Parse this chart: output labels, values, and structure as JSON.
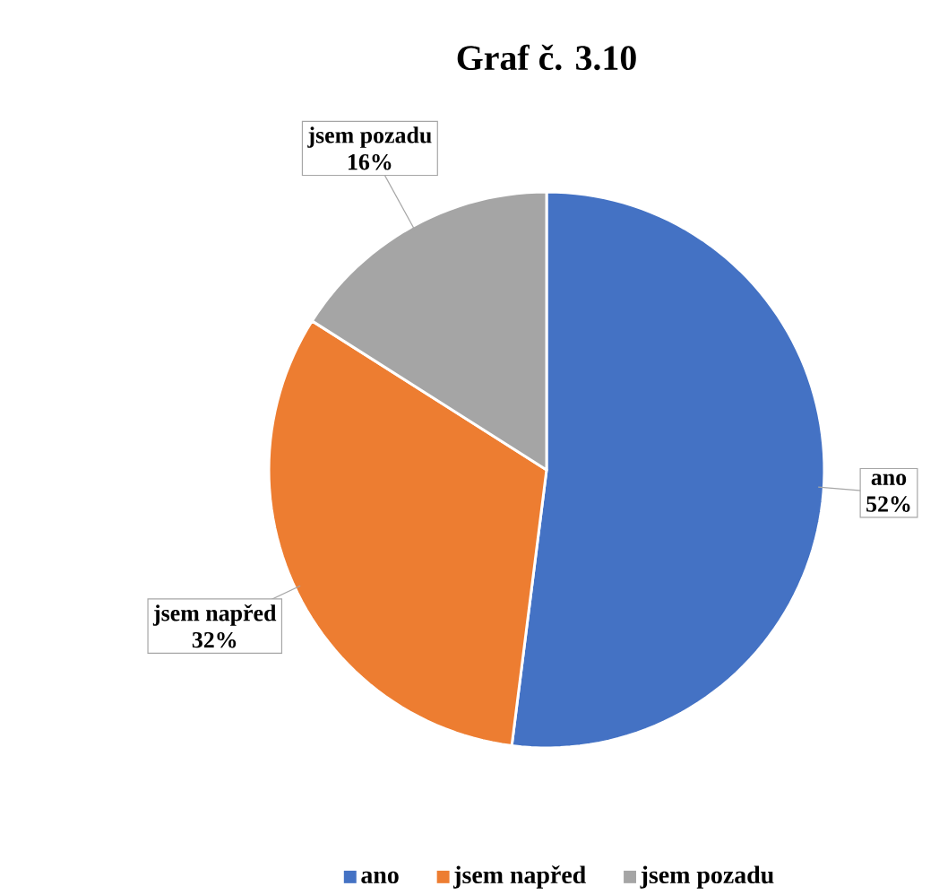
{
  "chart_data": {
    "type": "pie",
    "title": "Graf č. 3.10",
    "categories": [
      "ano",
      "jsem napřed",
      "jsem pozadu"
    ],
    "values": [
      52,
      32,
      16
    ],
    "colors": [
      "#4472c4",
      "#ed7d31",
      "#a5a5a5"
    ],
    "value_labels": [
      "52%",
      "32%",
      "16%"
    ],
    "legend": "bottom"
  }
}
